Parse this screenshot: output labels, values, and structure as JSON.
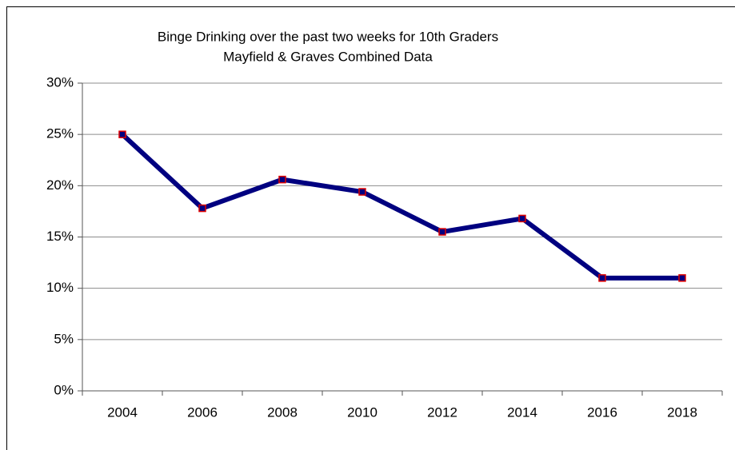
{
  "chart_data": {
    "type": "line",
    "title": "Binge Drinking over the past two weeks for 10th Graders",
    "subtitle": "Mayfield & Graves Combined Data",
    "categories": [
      "2004",
      "2006",
      "2008",
      "2010",
      "2012",
      "2014",
      "2016",
      "2018"
    ],
    "series": [
      {
        "name": "Binge Drinking",
        "color": "#000080",
        "marker_color": "#e00000",
        "values": [
          25,
          17.8,
          20.6,
          19.4,
          15.5,
          16.8,
          11,
          11
        ]
      }
    ],
    "ylim": [
      0,
      30
    ],
    "yticks": [
      {
        "value": 0,
        "label": "0%"
      },
      {
        "value": 5,
        "label": "5%"
      },
      {
        "value": 10,
        "label": "10%"
      },
      {
        "value": 15,
        "label": "15%"
      },
      {
        "value": 20,
        "label": "20%"
      },
      {
        "value": 25,
        "label": "25%"
      },
      {
        "value": 30,
        "label": "30%"
      }
    ],
    "grid": true
  }
}
